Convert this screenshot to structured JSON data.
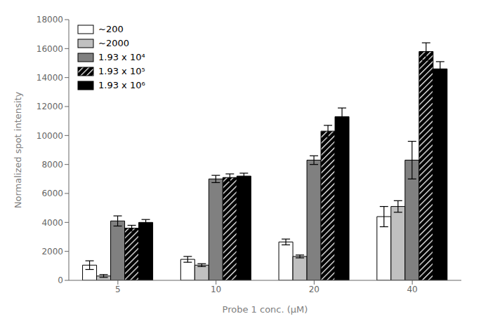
{
  "chart_data": {
    "type": "bar",
    "categories": [
      "5",
      "10",
      "20",
      "40"
    ],
    "series": [
      {
        "name": "~200",
        "color": "#ffffff",
        "values": [
          1050,
          1450,
          2650,
          4400
        ],
        "errors": [
          300,
          200,
          200,
          700
        ]
      },
      {
        "name": "~2000",
        "color": "#c0c0c0",
        "values": [
          300,
          1050,
          1650,
          5100
        ],
        "errors": [
          100,
          100,
          100,
          400
        ]
      },
      {
        "name": "1.93 x 10⁴",
        "color": "#808080",
        "values": [
          4100,
          7000,
          8300,
          8300
        ],
        "errors": [
          350,
          250,
          300,
          1300
        ]
      },
      {
        "name": "1.93 x 10⁵",
        "color": "#000000",
        "values": [
          3600,
          7100,
          10300,
          15800
        ],
        "errors": [
          200,
          250,
          400,
          600
        ]
      },
      {
        "name": "1.93 x 10⁶",
        "color": "#000000",
        "values": [
          4000,
          7200,
          11300,
          14600
        ],
        "errors": [
          200,
          200,
          600,
          500
        ]
      }
    ],
    "xlabel": "Probe 1 conc. (μM)",
    "ylabel": "Normalized spot intensity",
    "ylim": [
      0,
      18000
    ],
    "yticks": [
      0,
      2000,
      4000,
      6000,
      8000,
      10000,
      12000,
      14000,
      16000,
      18000
    ],
    "legend": "upper left",
    "grid": false
  }
}
